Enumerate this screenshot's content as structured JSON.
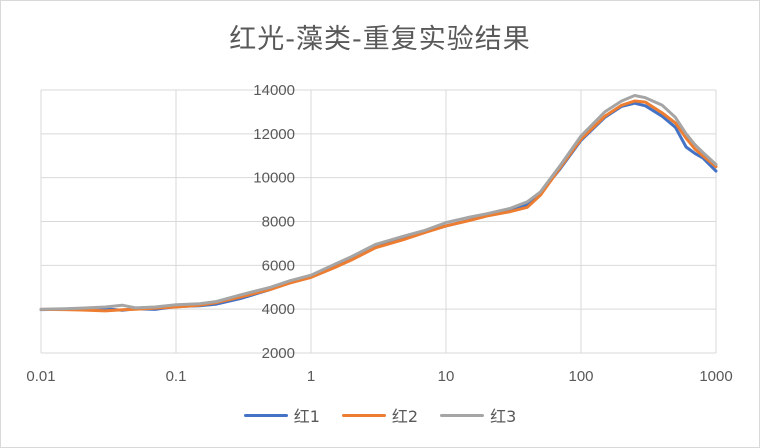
{
  "chart_data": {
    "type": "line",
    "title": "红光-藻类-重复实验结果",
    "xscale": "log",
    "xlim": [
      0.01,
      1000
    ],
    "ylim": [
      2000,
      14000
    ],
    "x_ticks": [
      0.01,
      0.1,
      1,
      10,
      100,
      1000
    ],
    "x_tick_labels": [
      "0.01",
      "0.1",
      "1",
      "10",
      "100",
      "1000"
    ],
    "y_ticks": [
      2000,
      4000,
      6000,
      8000,
      10000,
      12000,
      14000
    ],
    "y_tick_labels": [
      "2000",
      "4000",
      "6000",
      "8000",
      "10000",
      "12000",
      "14000"
    ],
    "grid": true,
    "legend": "bottom",
    "series": [
      {
        "name": "红1",
        "color": "#4472c4",
        "points": [
          [
            0.01,
            3980
          ],
          [
            0.015,
            4000
          ],
          [
            0.02,
            3990
          ],
          [
            0.03,
            4010
          ],
          [
            0.04,
            3950
          ],
          [
            0.05,
            4020
          ],
          [
            0.07,
            3990
          ],
          [
            0.1,
            4120
          ],
          [
            0.15,
            4160
          ],
          [
            0.2,
            4230
          ],
          [
            0.3,
            4480
          ],
          [
            0.5,
            4900
          ],
          [
            0.7,
            5250
          ],
          [
            1,
            5500
          ],
          [
            1.5,
            5950
          ],
          [
            2,
            6300
          ],
          [
            3,
            6850
          ],
          [
            5,
            7250
          ],
          [
            7,
            7520
          ],
          [
            10,
            7800
          ],
          [
            15,
            8060
          ],
          [
            20,
            8280
          ],
          [
            30,
            8520
          ],
          [
            40,
            8780
          ],
          [
            50,
            9300
          ],
          [
            70,
            10400
          ],
          [
            100,
            11700
          ],
          [
            150,
            12750
          ],
          [
            200,
            13250
          ],
          [
            250,
            13400
          ],
          [
            300,
            13280
          ],
          [
            400,
            12800
          ],
          [
            500,
            12300
          ],
          [
            600,
            11400
          ],
          [
            700,
            11100
          ],
          [
            800,
            10900
          ],
          [
            1000,
            10300
          ]
        ]
      },
      {
        "name": "红2",
        "color": "#ed7d31",
        "points": [
          [
            0.01,
            3990
          ],
          [
            0.015,
            3980
          ],
          [
            0.02,
            3960
          ],
          [
            0.03,
            3920
          ],
          [
            0.04,
            3970
          ],
          [
            0.05,
            4000
          ],
          [
            0.07,
            4050
          ],
          [
            0.1,
            4100
          ],
          [
            0.15,
            4180
          ],
          [
            0.2,
            4300
          ],
          [
            0.3,
            4550
          ],
          [
            0.5,
            4900
          ],
          [
            0.7,
            5200
          ],
          [
            1,
            5450
          ],
          [
            1.5,
            5900
          ],
          [
            2,
            6250
          ],
          [
            3,
            6800
          ],
          [
            5,
            7200
          ],
          [
            7,
            7500
          ],
          [
            10,
            7800
          ],
          [
            15,
            8050
          ],
          [
            20,
            8250
          ],
          [
            30,
            8450
          ],
          [
            40,
            8650
          ],
          [
            50,
            9200
          ],
          [
            70,
            10450
          ],
          [
            100,
            11750
          ],
          [
            150,
            12800
          ],
          [
            200,
            13300
          ],
          [
            250,
            13500
          ],
          [
            300,
            13450
          ],
          [
            400,
            12950
          ],
          [
            500,
            12500
          ],
          [
            600,
            11800
          ],
          [
            700,
            11300
          ],
          [
            800,
            11000
          ],
          [
            1000,
            10500
          ]
        ]
      },
      {
        "name": "红3",
        "color": "#a5a5a5",
        "points": [
          [
            0.01,
            4000
          ],
          [
            0.015,
            4020
          ],
          [
            0.02,
            4050
          ],
          [
            0.03,
            4100
          ],
          [
            0.04,
            4180
          ],
          [
            0.05,
            4060
          ],
          [
            0.07,
            4100
          ],
          [
            0.1,
            4200
          ],
          [
            0.15,
            4250
          ],
          [
            0.2,
            4350
          ],
          [
            0.3,
            4650
          ],
          [
            0.5,
            5000
          ],
          [
            0.7,
            5300
          ],
          [
            1,
            5550
          ],
          [
            1.5,
            6050
          ],
          [
            2,
            6400
          ],
          [
            3,
            6950
          ],
          [
            5,
            7350
          ],
          [
            7,
            7600
          ],
          [
            10,
            7950
          ],
          [
            15,
            8200
          ],
          [
            20,
            8350
          ],
          [
            30,
            8600
          ],
          [
            40,
            8900
          ],
          [
            50,
            9350
          ],
          [
            70,
            10550
          ],
          [
            100,
            11900
          ],
          [
            150,
            13000
          ],
          [
            200,
            13500
          ],
          [
            250,
            13750
          ],
          [
            300,
            13650
          ],
          [
            400,
            13300
          ],
          [
            500,
            12750
          ],
          [
            600,
            12000
          ],
          [
            700,
            11500
          ],
          [
            800,
            11150
          ],
          [
            1000,
            10600
          ]
        ]
      }
    ]
  }
}
